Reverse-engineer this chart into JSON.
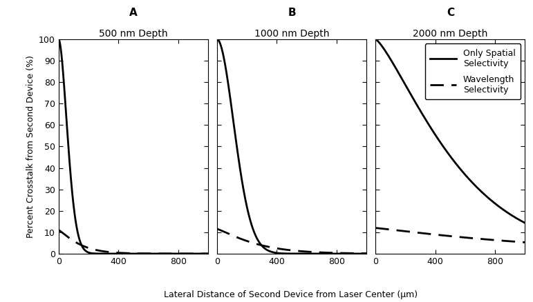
{
  "panels": [
    {
      "label": "A",
      "title": "500 nm Depth",
      "depth": 500
    },
    {
      "label": "B",
      "title": "1000 nm Depth",
      "depth": 1000
    },
    {
      "label": "C",
      "title": "2000 nm Depth",
      "depth": 2000
    }
  ],
  "xlim": [
    0,
    1000
  ],
  "ylim": [
    0,
    100
  ],
  "xticks": [
    0,
    400,
    800
  ],
  "yticks": [
    0,
    10,
    20,
    30,
    40,
    50,
    60,
    70,
    80,
    90,
    100
  ],
  "xlabel": "Lateral Distance of Second Device from Laser Center (μm)",
  "ylabel": "Percent Crosstalk from Second Device (%)",
  "line_color": "#000000",
  "background_color": "#ffffff",
  "title_fontsize": 10,
  "label_fontsize": 11,
  "axis_fontsize": 9,
  "tick_fontsize": 9,
  "legend_fontsize": 9,
  "spatial_params": {
    "500": {
      "scale": 80,
      "power": 1.8
    },
    "1000": {
      "scale": 160,
      "power": 1.9
    },
    "2000": {
      "scale": 600,
      "power": 1.3
    }
  },
  "wavelength_params": {
    "500": {
      "start": 11.0,
      "scale": 150,
      "power": 1.2
    },
    "1000": {
      "start": 11.5,
      "scale": 280,
      "power": 1.2
    },
    "2000": {
      "start": 12.0,
      "scale": 1200,
      "power": 1.1
    }
  }
}
